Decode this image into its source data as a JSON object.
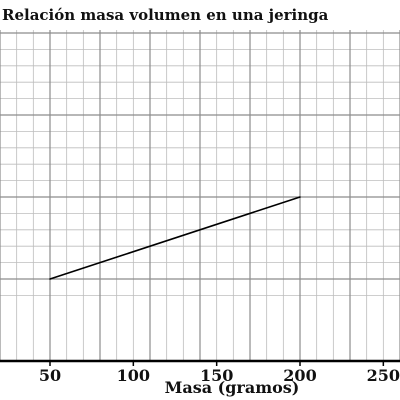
{
  "chart_data": {
    "type": "line",
    "title": "Relación masa volumen en una jeringa",
    "xlabel": "Masa (gramos)",
    "ylabel": "",
    "xlim": [
      10,
      260
    ],
    "x_ticks": [
      50,
      100,
      150,
      200,
      250
    ],
    "grid": true,
    "series": [
      {
        "x": [
          50,
          200
        ],
        "y": [
          1,
          2
        ]
      }
    ],
    "colors": {
      "line": "#000000",
      "grid_minor": "#bdbdbd",
      "grid_major": "#8c8c8c",
      "axis": "#000000"
    }
  }
}
